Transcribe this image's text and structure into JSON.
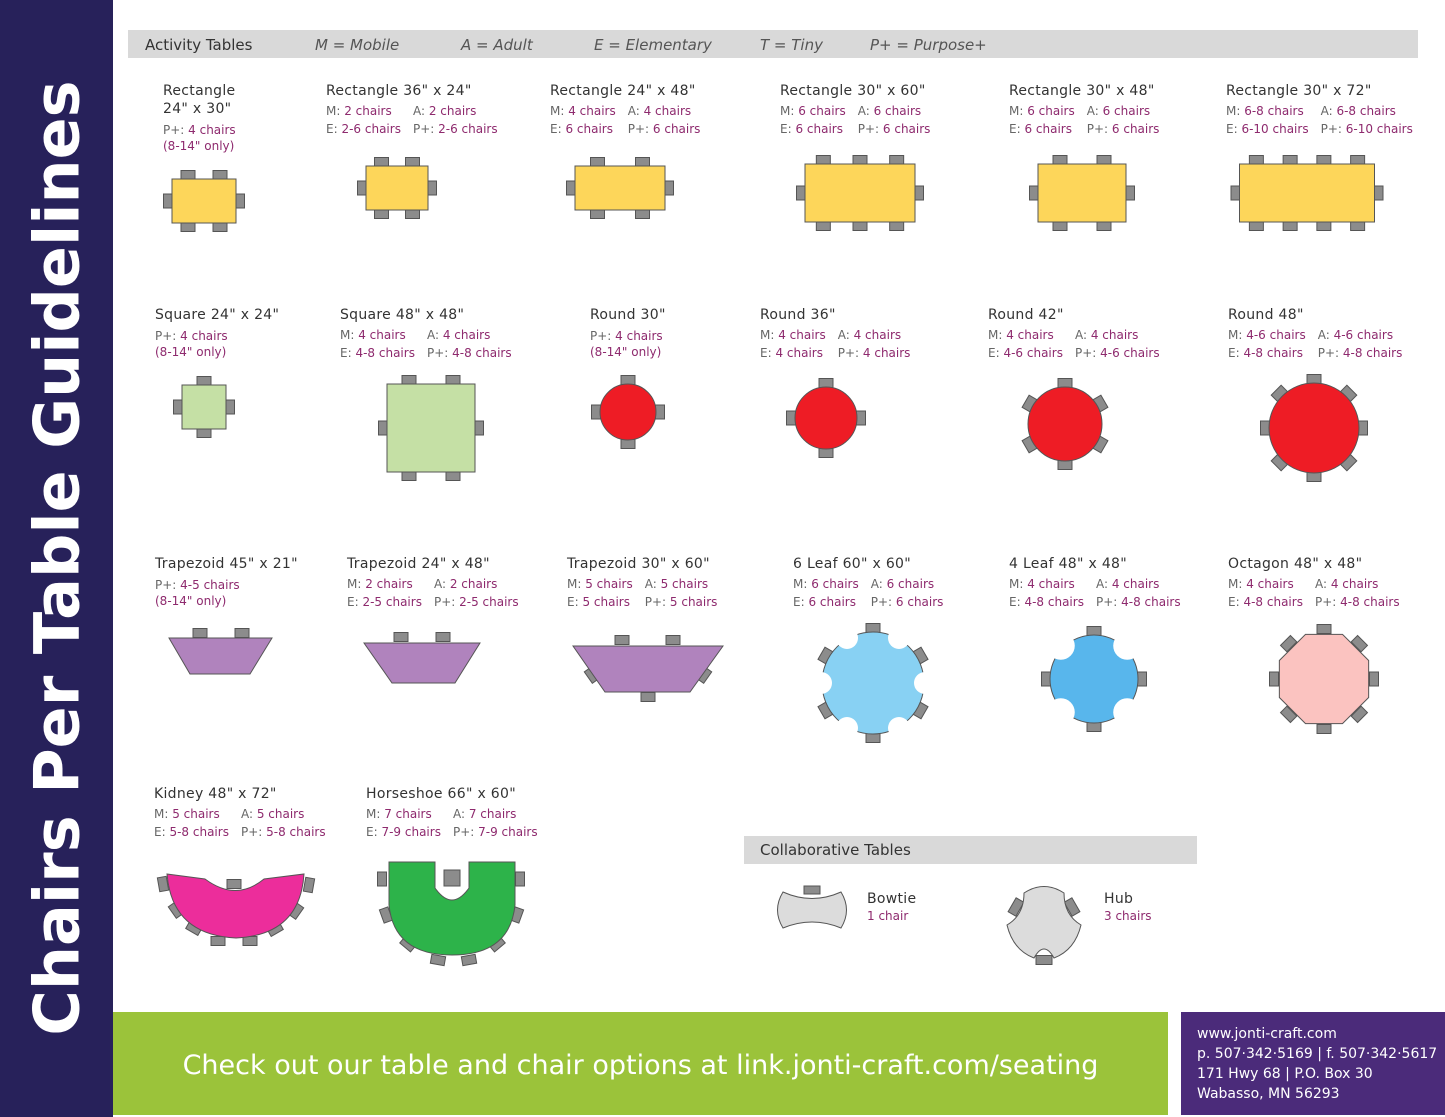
{
  "sidebar": {
    "title": "Chairs Per Table Guidelines",
    "color": "#27215a"
  },
  "header": {
    "title": "Activity Tables",
    "legend": [
      "M = Mobile",
      "A = Adult",
      "E = Elementary",
      "T = Tiny",
      "P+ = Purpose+"
    ]
  },
  "colors": {
    "chair": "#8c8c8c",
    "rect": "#fdd65a",
    "square": "#c5e0a5",
    "round": "#ee1c25",
    "trapezoid": "#b083bd",
    "leaf6": "#88d1f3",
    "leaf4": "#58b6ec",
    "octagon": "#fbc3c0",
    "kidney": "#ec2d9b",
    "horseshoe": "#2db34a",
    "collab": "#dcdcdc",
    "value": "#8e2a6e"
  },
  "tables": [
    {
      "name": "Rectangle\n24\" x 30\"",
      "specs": [],
      "pplus": "P+: ",
      "pplus_val": "4 chairs",
      "note": "(8-14\" only)"
    },
    {
      "name": "Rectangle 36\" x 24\"",
      "specs": [
        [
          "M: ",
          "2 chairs"
        ],
        [
          "A: ",
          "2 chairs"
        ],
        [
          "E: ",
          "2-6 chairs"
        ],
        [
          "P+: ",
          "2-6 chairs"
        ]
      ]
    },
    {
      "name": "Rectangle 24\" x 48\"",
      "specs": [
        [
          "M: ",
          "4 chairs"
        ],
        [
          "A: ",
          "4 chairs"
        ],
        [
          "E: ",
          "6 chairs"
        ],
        [
          "P+: ",
          "6 chairs"
        ]
      ]
    },
    {
      "name": "Rectangle 30\" x 60\"",
      "specs": [
        [
          "M: ",
          "6 chairs"
        ],
        [
          "A: ",
          "6 chairs"
        ],
        [
          "E: ",
          "6 chairs"
        ],
        [
          "P+: ",
          "6 chairs"
        ]
      ]
    },
    {
      "name": "Rectangle 30\" x 48\"",
      "specs": [
        [
          "M: ",
          "6 chairs"
        ],
        [
          "A: ",
          "6 chairs"
        ],
        [
          "E: ",
          "6 chairs"
        ],
        [
          "P+: ",
          "6 chairs"
        ]
      ]
    },
    {
      "name": "Rectangle 30\" x 72\"",
      "specs": [
        [
          "M: ",
          "6-8 chairs"
        ],
        [
          "A: ",
          "6-8 chairs"
        ],
        [
          "E: ",
          "6-10 chairs"
        ],
        [
          "P+: ",
          "6-10 chairs"
        ]
      ]
    },
    {
      "name": "Square 24\" x 24\"",
      "specs": [],
      "pplus": "P+: ",
      "pplus_val": "4 chairs",
      "note": "(8-14\" only)"
    },
    {
      "name": "Square 48\" x 48\"",
      "specs": [
        [
          "M: ",
          "4 chairs"
        ],
        [
          "A: ",
          "4 chairs"
        ],
        [
          "E: ",
          "4-8 chairs"
        ],
        [
          "P+: ",
          "4-8 chairs"
        ]
      ]
    },
    {
      "name": "Round 30\"",
      "specs": [],
      "pplus": "P+: ",
      "pplus_val": "4 chairs",
      "note": "(8-14\" only)"
    },
    {
      "name": "Round 36\"",
      "specs": [
        [
          "M: ",
          "4 chairs"
        ],
        [
          "A: ",
          "4 chairs"
        ],
        [
          "E: ",
          "4 chairs"
        ],
        [
          "P+: ",
          "4 chairs"
        ]
      ]
    },
    {
      "name": "Round 42\"",
      "specs": [
        [
          "M: ",
          "4 chairs"
        ],
        [
          "A: ",
          "4 chairs"
        ],
        [
          "E: ",
          "4-6 chairs"
        ],
        [
          "P+: ",
          "4-6 chairs"
        ]
      ]
    },
    {
      "name": "Round 48\"",
      "specs": [
        [
          "M: ",
          "4-6 chairs"
        ],
        [
          "A: ",
          "4-6 chairs"
        ],
        [
          "E: ",
          "4-8 chairs"
        ],
        [
          "P+: ",
          "4-8 chairs"
        ]
      ]
    },
    {
      "name": "Trapezoid 45\" x 21\"",
      "specs": [],
      "pplus": "P+: ",
      "pplus_val": "4-5 chairs",
      "note": "(8-14\" only)"
    },
    {
      "name": "Trapezoid 24\" x 48\"",
      "specs": [
        [
          "M: ",
          "2 chairs"
        ],
        [
          "A: ",
          "2 chairs"
        ],
        [
          "E: ",
          "2-5 chairs"
        ],
        [
          "P+: ",
          "2-5 chairs"
        ]
      ]
    },
    {
      "name": "Trapezoid 30\" x 60\"",
      "specs": [
        [
          "M: ",
          "5 chairs"
        ],
        [
          "A: ",
          "5 chairs"
        ],
        [
          "E: ",
          "5 chairs"
        ],
        [
          "P+: ",
          "5 chairs"
        ]
      ]
    },
    {
      "name": "6 Leaf 60\" x 60\"",
      "specs": [
        [
          "M: ",
          "6 chairs"
        ],
        [
          "A: ",
          "6 chairs"
        ],
        [
          "E: ",
          "6 chairs"
        ],
        [
          "P+: ",
          "6 chairs"
        ]
      ]
    },
    {
      "name": "4 Leaf 48\" x 48\"",
      "specs": [
        [
          "M: ",
          "4 chairs"
        ],
        [
          "A: ",
          "4 chairs"
        ],
        [
          "E: ",
          "4-8 chairs"
        ],
        [
          "P+: ",
          "4-8 chairs"
        ]
      ]
    },
    {
      "name": "Octagon 48\" x 48\"",
      "specs": [
        [
          "M: ",
          "4 chairs"
        ],
        [
          "A: ",
          "4 chairs"
        ],
        [
          "E: ",
          "4-8 chairs"
        ],
        [
          "P+: ",
          "4-8 chairs"
        ]
      ]
    },
    {
      "name": "Kidney 48\" x 72\"",
      "specs": [
        [
          "M: ",
          "5 chairs"
        ],
        [
          "A: ",
          "5 chairs"
        ],
        [
          "E: ",
          "5-8 chairs"
        ],
        [
          "P+: ",
          "5-8 chairs"
        ]
      ]
    },
    {
      "name": "Horseshoe 66\" x 60\"",
      "specs": [
        [
          "M: ",
          "7 chairs"
        ],
        [
          "A: ",
          "7 chairs"
        ],
        [
          "E: ",
          "7-9 chairs"
        ],
        [
          "P+: ",
          "7-9 chairs"
        ]
      ]
    }
  ],
  "collaborative": {
    "title": "Collaborative Tables",
    "items": [
      {
        "name": "Bowtie",
        "chairs": "1 chair"
      },
      {
        "name": "Hub",
        "chairs": "3 chairs"
      }
    ]
  },
  "footer": {
    "cta": "Check out our table and chair options at link.jonti-craft.com/seating",
    "cta_color": "#9bc33a",
    "contact": [
      "www.jonti-craft.com",
      "p. 507·342·5169  |  f. 507·342·5617",
      "171 Hwy 68  |  P.O. Box 30",
      "Wabasso, MN 56293"
    ],
    "contact_color": "#4b2b7a"
  }
}
